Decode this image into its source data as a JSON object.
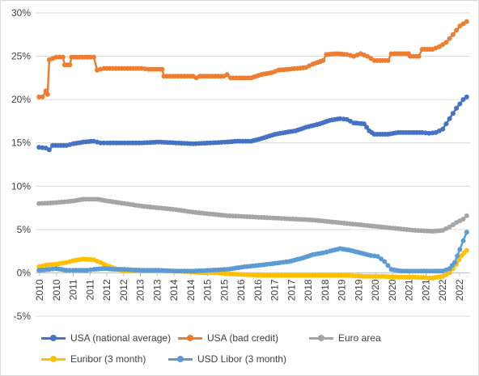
{
  "chart_data": {
    "type": "line",
    "title": "",
    "xlabel": "",
    "ylabel": "",
    "ylim": [
      -0.05,
      0.3
    ],
    "xlim": [
      2009.9,
      2022.6
    ],
    "y_ticks": [
      "-5%",
      "0%",
      "5%",
      "10%",
      "15%",
      "20%",
      "25%",
      "30%"
    ],
    "y_tick_values": [
      -0.05,
      0,
      0.05,
      0.1,
      0.15,
      0.2,
      0.25,
      0.3
    ],
    "x_ticks": [
      "2010",
      "2010",
      "2011",
      "2011",
      "2012",
      "2012",
      "2013",
      "2013",
      "2014",
      "2014",
      "2015",
      "2015",
      "2016",
      "2016",
      "2017",
      "2017",
      "2018",
      "2018",
      "2019",
      "2019",
      "2020",
      "2020",
      "2021",
      "2021",
      "2022",
      "2022"
    ],
    "grid": true,
    "legend_position": "bottom",
    "series": [
      {
        "name": "USA  (national average)",
        "color": "#4472c4",
        "points": [
          [
            2010.0,
            0.145
          ],
          [
            2010.2,
            0.144
          ],
          [
            2010.3,
            0.142
          ],
          [
            2010.4,
            0.147
          ],
          [
            2010.8,
            0.147
          ],
          [
            2011.0,
            0.149
          ],
          [
            2011.3,
            0.151
          ],
          [
            2011.6,
            0.152
          ],
          [
            2011.8,
            0.15
          ],
          [
            2012.0,
            0.15
          ],
          [
            2012.5,
            0.15
          ],
          [
            2013.0,
            0.15
          ],
          [
            2013.5,
            0.151
          ],
          [
            2014.0,
            0.15
          ],
          [
            2014.5,
            0.149
          ],
          [
            2015.0,
            0.15
          ],
          [
            2015.5,
            0.151
          ],
          [
            2015.8,
            0.152
          ],
          [
            2016.2,
            0.152
          ],
          [
            2016.5,
            0.155
          ],
          [
            2016.9,
            0.16
          ],
          [
            2017.2,
            0.162
          ],
          [
            2017.5,
            0.164
          ],
          [
            2017.8,
            0.168
          ],
          [
            2018.2,
            0.172
          ],
          [
            2018.5,
            0.176
          ],
          [
            2018.8,
            0.178
          ],
          [
            2019.0,
            0.177
          ],
          [
            2019.2,
            0.173
          ],
          [
            2019.5,
            0.172
          ],
          [
            2019.65,
            0.164
          ],
          [
            2019.8,
            0.16
          ],
          [
            2020.2,
            0.16
          ],
          [
            2020.5,
            0.162
          ],
          [
            2020.8,
            0.162
          ],
          [
            2021.2,
            0.162
          ],
          [
            2021.4,
            0.161
          ],
          [
            2021.6,
            0.162
          ],
          [
            2021.8,
            0.166
          ],
          [
            2022.0,
            0.178
          ],
          [
            2022.2,
            0.19
          ],
          [
            2022.4,
            0.2
          ],
          [
            2022.5,
            0.203
          ]
        ]
      },
      {
        "name": "USA (bad credit)",
        "color": "#ed7d31",
        "points": [
          [
            2010.0,
            0.203
          ],
          [
            2010.1,
            0.203
          ],
          [
            2010.2,
            0.21
          ],
          [
            2010.25,
            0.206
          ],
          [
            2010.3,
            0.246
          ],
          [
            2010.5,
            0.249
          ],
          [
            2010.7,
            0.249
          ],
          [
            2010.75,
            0.24
          ],
          [
            2010.9,
            0.24
          ],
          [
            2010.95,
            0.249
          ],
          [
            2011.5,
            0.249
          ],
          [
            2011.6,
            0.249
          ],
          [
            2011.7,
            0.234
          ],
          [
            2011.9,
            0.236
          ],
          [
            2012.5,
            0.236
          ],
          [
            2013.0,
            0.236
          ],
          [
            2013.2,
            0.235
          ],
          [
            2013.6,
            0.235
          ],
          [
            2013.65,
            0.227
          ],
          [
            2014.5,
            0.227
          ],
          [
            2014.6,
            0.225
          ],
          [
            2014.7,
            0.227
          ],
          [
            2015.0,
            0.227
          ],
          [
            2015.4,
            0.227
          ],
          [
            2015.5,
            0.229
          ],
          [
            2015.6,
            0.225
          ],
          [
            2016.2,
            0.225
          ],
          [
            2016.5,
            0.229
          ],
          [
            2016.8,
            0.231
          ],
          [
            2017.0,
            0.234
          ],
          [
            2017.3,
            0.235
          ],
          [
            2017.8,
            0.237
          ],
          [
            2018.0,
            0.241
          ],
          [
            2018.3,
            0.245
          ],
          [
            2018.4,
            0.252
          ],
          [
            2018.7,
            0.253
          ],
          [
            2019.0,
            0.252
          ],
          [
            2019.2,
            0.25
          ],
          [
            2019.4,
            0.253
          ],
          [
            2019.6,
            0.25
          ],
          [
            2019.8,
            0.245
          ],
          [
            2020.2,
            0.245
          ],
          [
            2020.3,
            0.253
          ],
          [
            2020.8,
            0.253
          ],
          [
            2020.85,
            0.25
          ],
          [
            2021.1,
            0.25
          ],
          [
            2021.2,
            0.258
          ],
          [
            2021.5,
            0.258
          ],
          [
            2021.7,
            0.261
          ],
          [
            2021.9,
            0.266
          ],
          [
            2022.1,
            0.275
          ],
          [
            2022.3,
            0.285
          ],
          [
            2022.5,
            0.29
          ]
        ]
      },
      {
        "name": "Euro area",
        "color": "#a5a5a5",
        "points": [
          [
            2010.0,
            0.08
          ],
          [
            2010.5,
            0.081
          ],
          [
            2011.0,
            0.083
          ],
          [
            2011.3,
            0.085
          ],
          [
            2011.7,
            0.085
          ],
          [
            2012.0,
            0.083
          ],
          [
            2012.5,
            0.08
          ],
          [
            2013.0,
            0.077
          ],
          [
            2013.5,
            0.075
          ],
          [
            2014.0,
            0.073
          ],
          [
            2014.5,
            0.07
          ],
          [
            2015.0,
            0.068
          ],
          [
            2015.5,
            0.066
          ],
          [
            2016.0,
            0.065
          ],
          [
            2016.5,
            0.064
          ],
          [
            2017.0,
            0.063
          ],
          [
            2017.5,
            0.062
          ],
          [
            2018.0,
            0.061
          ],
          [
            2018.5,
            0.059
          ],
          [
            2019.0,
            0.057
          ],
          [
            2019.5,
            0.055
          ],
          [
            2020.0,
            0.053
          ],
          [
            2020.5,
            0.051
          ],
          [
            2021.0,
            0.049
          ],
          [
            2021.5,
            0.048
          ],
          [
            2021.8,
            0.049
          ],
          [
            2022.0,
            0.053
          ],
          [
            2022.2,
            0.058
          ],
          [
            2022.4,
            0.062
          ],
          [
            2022.5,
            0.066
          ]
        ]
      },
      {
        "name": "Euribor (3 month)",
        "color": "#ffc000",
        "points": [
          [
            2010.0,
            0.007
          ],
          [
            2010.2,
            0.009
          ],
          [
            2010.5,
            0.01
          ],
          [
            2010.8,
            0.012
          ],
          [
            2011.0,
            0.014
          ],
          [
            2011.3,
            0.016
          ],
          [
            2011.6,
            0.015
          ],
          [
            2011.8,
            0.012
          ],
          [
            2012.0,
            0.008
          ],
          [
            2012.3,
            0.004
          ],
          [
            2012.6,
            0.002
          ],
          [
            2013.0,
            0.002
          ],
          [
            2013.5,
            0.002
          ],
          [
            2014.0,
            0.002
          ],
          [
            2014.5,
            0.001
          ],
          [
            2014.8,
            0.0
          ],
          [
            2015.2,
            0.0
          ],
          [
            2015.5,
            -0.001
          ],
          [
            2016.0,
            -0.002
          ],
          [
            2016.5,
            -0.003
          ],
          [
            2017.0,
            -0.003
          ],
          [
            2018.0,
            -0.003
          ],
          [
            2019.0,
            -0.003
          ],
          [
            2019.5,
            -0.004
          ],
          [
            2020.0,
            -0.004
          ],
          [
            2020.5,
            -0.005
          ],
          [
            2021.0,
            -0.005
          ],
          [
            2021.5,
            -0.006
          ],
          [
            2021.8,
            -0.004
          ],
          [
            2022.0,
            0.0
          ],
          [
            2022.2,
            0.01
          ],
          [
            2022.35,
            0.02
          ],
          [
            2022.5,
            0.026
          ]
        ]
      },
      {
        "name": "USD Libor (3 month)",
        "color": "#5b9bd5",
        "points": [
          [
            2010.0,
            0.003
          ],
          [
            2010.3,
            0.004
          ],
          [
            2010.5,
            0.005
          ],
          [
            2010.8,
            0.003
          ],
          [
            2011.0,
            0.003
          ],
          [
            2011.4,
            0.003
          ],
          [
            2011.6,
            0.004
          ],
          [
            2011.9,
            0.005
          ],
          [
            2012.2,
            0.004
          ],
          [
            2012.5,
            0.004
          ],
          [
            2013.0,
            0.003
          ],
          [
            2013.5,
            0.003
          ],
          [
            2014.0,
            0.002
          ],
          [
            2014.5,
            0.002
          ],
          [
            2015.0,
            0.003
          ],
          [
            2015.5,
            0.004
          ],
          [
            2016.0,
            0.007
          ],
          [
            2016.5,
            0.009
          ],
          [
            2016.9,
            0.011
          ],
          [
            2017.3,
            0.013
          ],
          [
            2017.7,
            0.017
          ],
          [
            2018.0,
            0.021
          ],
          [
            2018.3,
            0.023
          ],
          [
            2018.5,
            0.025
          ],
          [
            2018.8,
            0.028
          ],
          [
            2019.1,
            0.026
          ],
          [
            2019.4,
            0.023
          ],
          [
            2019.7,
            0.02
          ],
          [
            2019.9,
            0.019
          ],
          [
            2020.1,
            0.013
          ],
          [
            2020.3,
            0.004
          ],
          [
            2020.6,
            0.002
          ],
          [
            2021.0,
            0.002
          ],
          [
            2021.5,
            0.002
          ],
          [
            2021.8,
            0.002
          ],
          [
            2022.0,
            0.005
          ],
          [
            2022.15,
            0.012
          ],
          [
            2022.3,
            0.027
          ],
          [
            2022.4,
            0.037
          ],
          [
            2022.5,
            0.047
          ]
        ]
      }
    ]
  }
}
